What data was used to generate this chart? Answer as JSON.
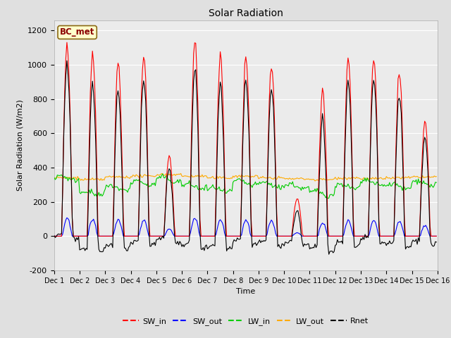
{
  "title": "Solar Radiation",
  "ylabel": "Solar Radiation (W/m2)",
  "xlabel": "Time",
  "ylim": [
    -200,
    1260
  ],
  "yticks": [
    -200,
    0,
    200,
    400,
    600,
    800,
    1000,
    1200
  ],
  "annotation_text": "BC_met",
  "legend_labels": [
    "SW_in",
    "SW_out",
    "LW_in",
    "LW_out",
    "Rnet"
  ],
  "legend_colors": [
    "#ff0000",
    "#0000ff",
    "#00cc00",
    "#ffaa00",
    "#000000"
  ],
  "line_colors": {
    "SW_in": "#ff0000",
    "SW_out": "#0000ff",
    "LW_in": "#00cc00",
    "LW_out": "#ffaa00",
    "Rnet": "#000000"
  },
  "fig_bg_color": "#e0e0e0",
  "plot_bg_color": "#ebebeb",
  "day_peaks_SW": [
    1130,
    1080,
    1020,
    1060,
    470,
    1150,
    1050,
    1040,
    1000,
    220,
    840,
    1040,
    1040,
    960,
    680
  ],
  "lw_in_day_adj": [
    60,
    -30,
    0,
    30,
    50,
    10,
    -10,
    30,
    20,
    10,
    -30,
    10,
    30,
    10,
    30
  ],
  "lw_out_day_adj": [
    0,
    -10,
    5,
    10,
    20,
    10,
    0,
    10,
    0,
    -5,
    -10,
    0,
    -5,
    0,
    5
  ]
}
